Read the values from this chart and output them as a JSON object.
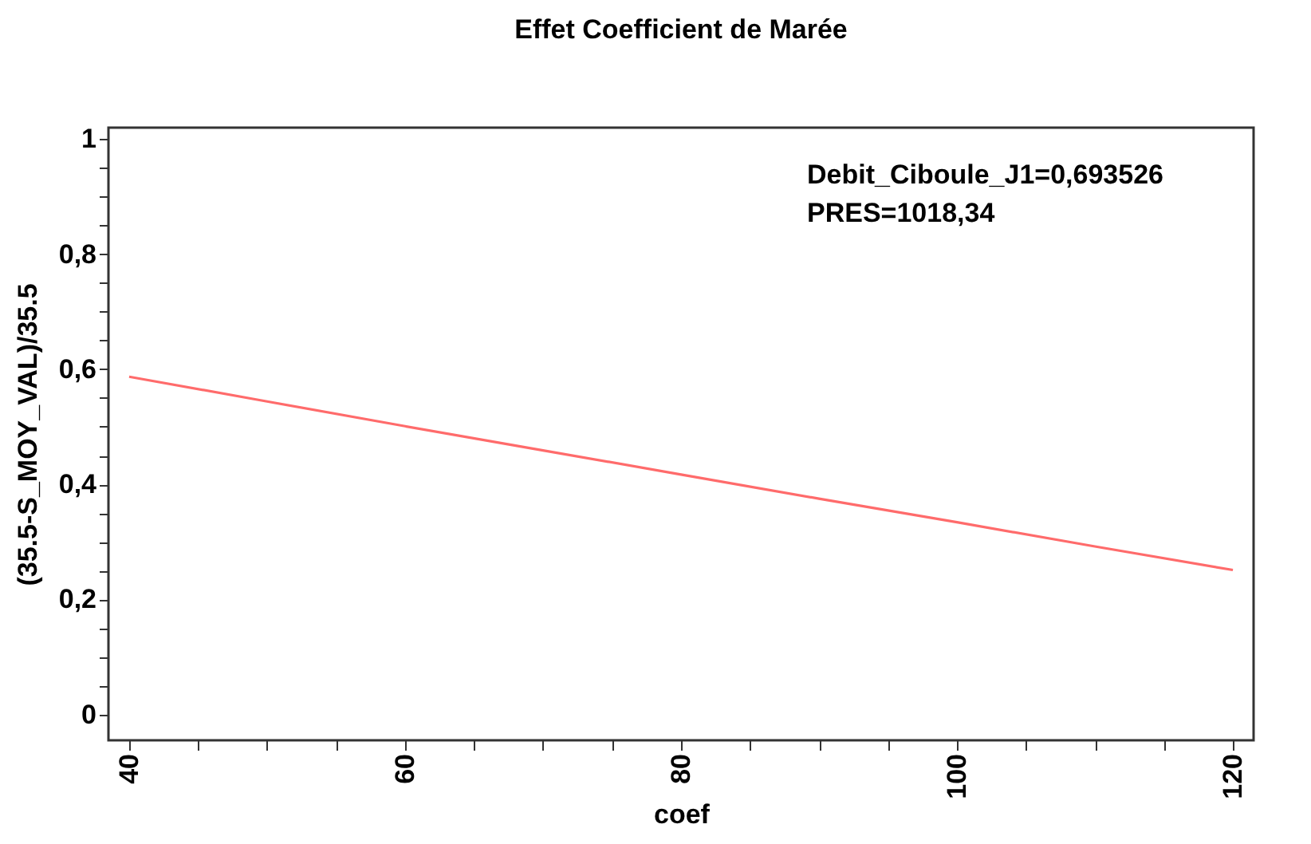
{
  "chart_data": {
    "type": "line",
    "title": "Effet Coefficient de Marée",
    "xlabel": "coef",
    "ylabel": "(35.5-S_MOY_VAL)/35.5",
    "annotations": [
      "Debit_Ciboule_J1=0,693526",
      "PRES=1018,34"
    ],
    "x": [
      40,
      50,
      60,
      70,
      80,
      90,
      100,
      110,
      120
    ],
    "series": [
      {
        "color": "#ff6b6b",
        "values": [
          0.587,
          0.544,
          0.501,
          0.459,
          0.417,
          0.375,
          0.334,
          0.292,
          0.251
        ]
      }
    ],
    "xlim": [
      38.5,
      121.5
    ],
    "ylim": [
      -0.045,
      1.02
    ],
    "xticks": [
      40,
      {
        "value": 45,
        "label": null
      },
      {
        "value": 50,
        "label": null
      },
      {
        "value": 55,
        "label": null
      },
      60,
      {
        "value": 65,
        "label": null
      },
      {
        "value": 70,
        "label": null
      },
      {
        "value": 75,
        "label": null
      },
      80,
      {
        "value": 85,
        "label": null
      },
      {
        "value": 90,
        "label": null
      },
      {
        "value": 95,
        "label": null
      },
      100,
      {
        "value": 105,
        "label": null
      },
      {
        "value": 110,
        "label": null
      },
      {
        "value": 115,
        "label": null
      },
      120
    ],
    "yticks": [
      0,
      {
        "value": 0.05,
        "label": null
      },
      {
        "value": 0.1,
        "label": null
      },
      {
        "value": 0.15,
        "label": null
      },
      {
        "value": 0.2,
        "label": "0,2"
      },
      {
        "value": 0.25,
        "label": null
      },
      {
        "value": 0.3,
        "label": null
      },
      {
        "value": 0.35,
        "label": null
      },
      {
        "value": 0.4,
        "label": "0,4"
      },
      {
        "value": 0.45,
        "label": null
      },
      {
        "value": 0.5,
        "label": null
      },
      {
        "value": 0.55,
        "label": null
      },
      {
        "value": 0.6,
        "label": "0,6"
      },
      {
        "value": 0.65,
        "label": null
      },
      {
        "value": 0.7,
        "label": null
      },
      {
        "value": 0.75,
        "label": null
      },
      {
        "value": 0.8,
        "label": "0,8"
      },
      {
        "value": 0.85,
        "label": null
      },
      {
        "value": 0.9,
        "label": null
      },
      {
        "value": 0.95,
        "label": null
      },
      1
    ],
    "grid": false,
    "legend": false,
    "marker": "none",
    "line_style": "solid"
  }
}
